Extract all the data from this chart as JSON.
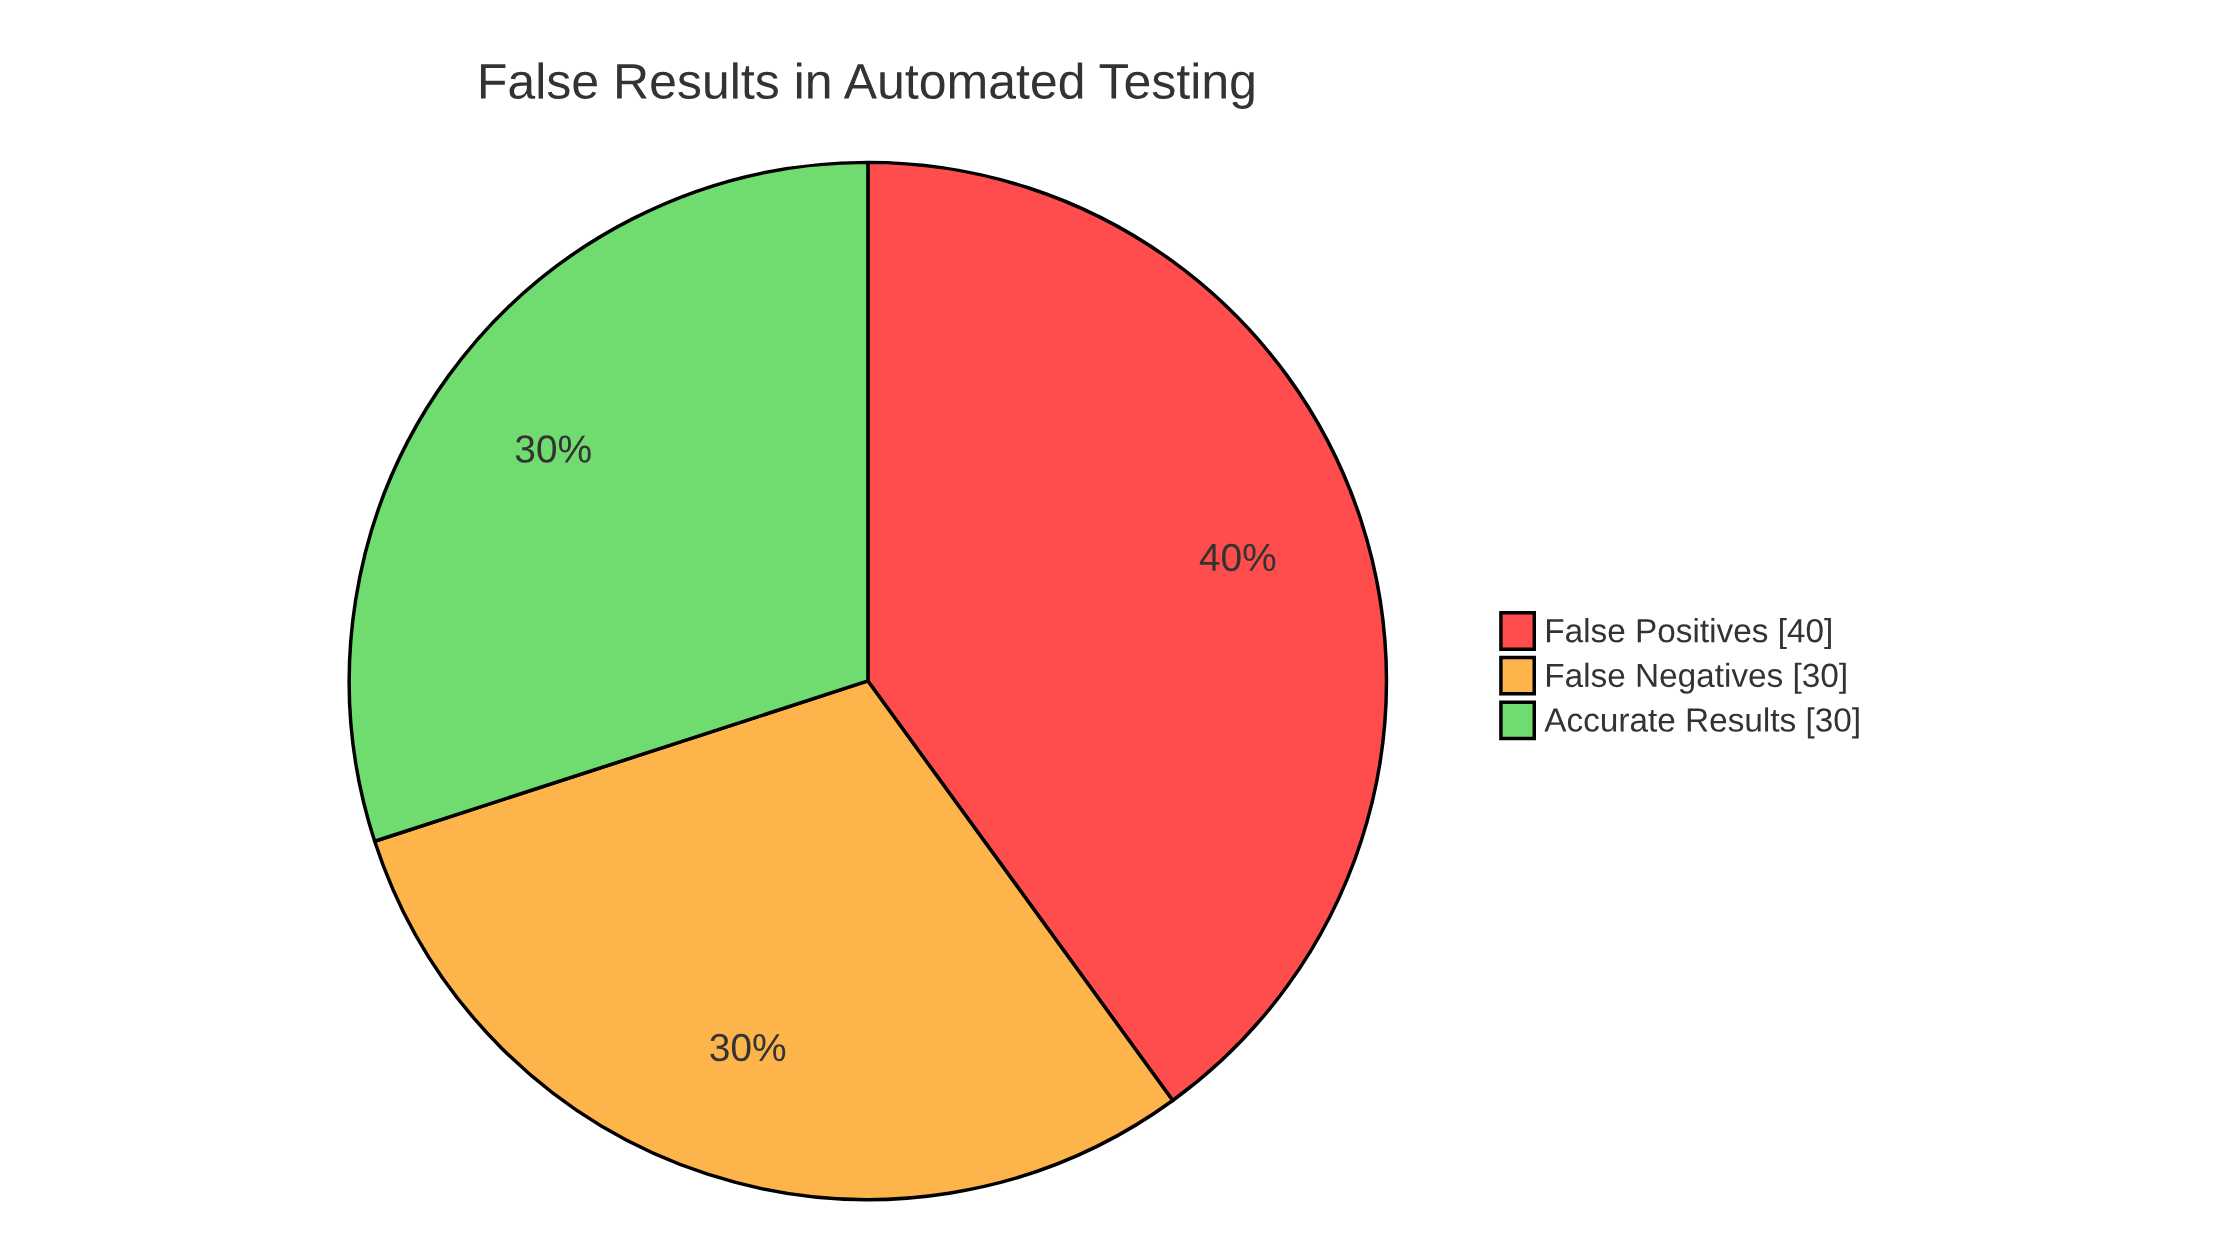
{
  "chart_data": {
    "type": "pie",
    "title": "False Results in Automated Testing",
    "categories": [
      "False Positives [40]",
      "False Negatives [30]",
      "Accurate Results [30]"
    ],
    "values": [
      40,
      30,
      30
    ],
    "value_labels": [
      "40%",
      "30%",
      "30%"
    ],
    "colors": [
      "#ff4d4d",
      "#fdb44b",
      "#70dc70"
    ],
    "legend": "right"
  }
}
